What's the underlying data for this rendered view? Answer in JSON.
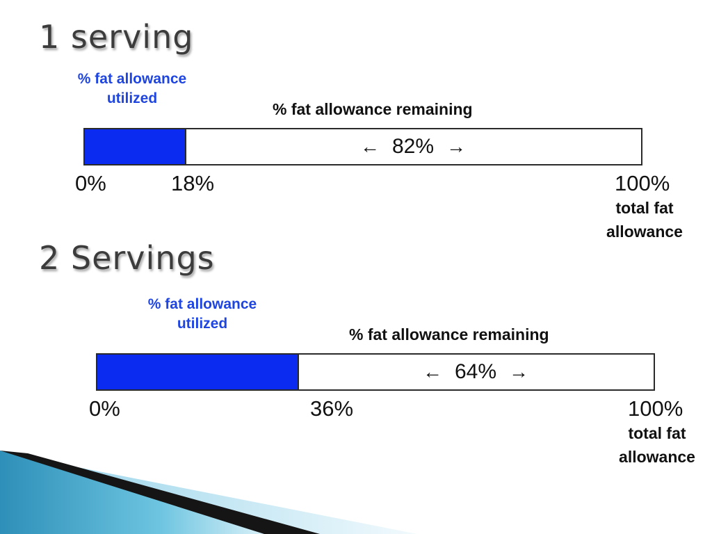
{
  "headings": [
    "1 serving",
    "2 Servings"
  ],
  "chart_data": [
    {
      "type": "bar",
      "title": "1 serving",
      "utilized_label": "% fat allowance utilized",
      "remaining_label": "% fat allowance remaining",
      "utilized_percent": 18,
      "remaining_percent": 82,
      "remaining_text": "82%",
      "ticks": [
        "0%",
        "18%",
        "100%"
      ],
      "total_label": "total fat allowance",
      "xlim": [
        0,
        100
      ],
      "fill_color": "#0b2cf0"
    },
    {
      "type": "bar",
      "title": "2 Servings",
      "utilized_label": "% fat allowance utilized",
      "remaining_label": "% fat allowance remaining",
      "utilized_percent": 36,
      "remaining_percent": 64,
      "remaining_text": "64%",
      "ticks": [
        "0%",
        "36%",
        "100%"
      ],
      "total_label": "total fat allowance",
      "xlim": [
        0,
        100
      ],
      "fill_color": "#0b2cf0"
    }
  ],
  "arrows": {
    "left": "←",
    "right": "→"
  }
}
